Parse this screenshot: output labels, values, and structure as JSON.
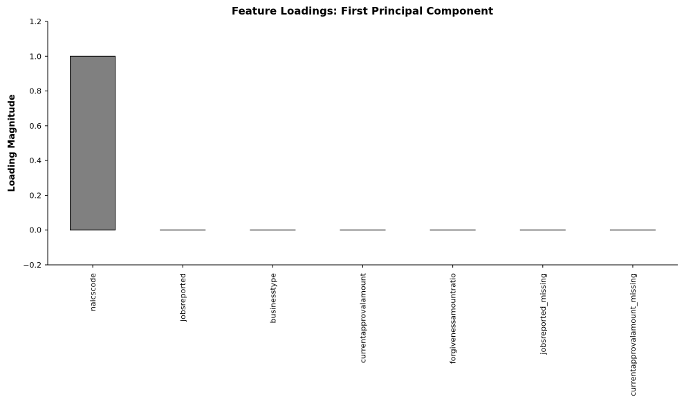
{
  "chart_data": {
    "type": "bar",
    "title": "Feature Loadings: First Principal Component",
    "xlabel": "",
    "ylabel": "Loading Magnitude",
    "categories": [
      "naicscode",
      "jobsreported",
      "businesstype",
      "currentapprovalamount",
      "forgivenessamountratio",
      "jobsreported_missing",
      "currentapprovalamount_missing"
    ],
    "values": [
      1.0,
      0.0,
      0.0,
      0.0,
      0.0,
      0.0,
      0.0
    ],
    "ylim": [
      -0.2,
      1.2
    ],
    "yticks": [
      -0.2,
      0.0,
      0.2,
      0.4,
      0.6,
      0.8,
      1.0,
      1.2
    ],
    "ytick_labels": [
      "−0.2",
      "0.0",
      "0.2",
      "0.4",
      "0.6",
      "0.8",
      "1.0",
      "1.2"
    ],
    "bar_color": "#808080",
    "edge_color": "#000000",
    "grid": false,
    "legend": "none"
  }
}
